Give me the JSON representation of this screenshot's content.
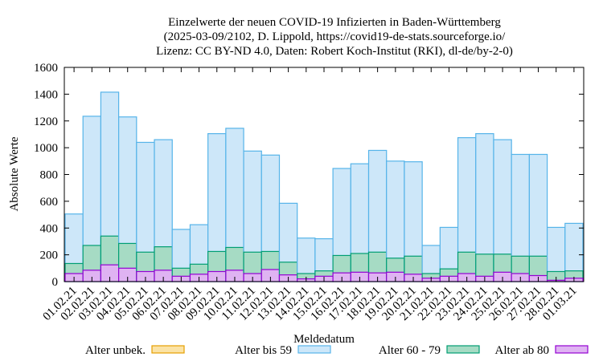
{
  "chart_data": {
    "type": "bar",
    "stacked": true,
    "title_lines": [
      "Einzelwerte der neuen COVID-19 Infizierten in Baden-Württemberg",
      "(2025-03-09/2102, D. Lippold, https://covid19-de-stats.sourceforge.io/",
      "Lizenz: CC BY-ND 4.0, Daten: Robert Koch-Institut (RKI), dl-de/by-2-0)"
    ],
    "xlabel": "Meldedatum",
    "ylabel": "Absolute Werte",
    "ylim": [
      0,
      1600
    ],
    "yticks": [
      0,
      200,
      400,
      600,
      800,
      1000,
      1200,
      1400,
      1600
    ],
    "categories": [
      "01.02.21",
      "02.02.21",
      "03.02.21",
      "04.02.21",
      "05.02.21",
      "06.02.21",
      "07.02.21",
      "08.02.21",
      "09.02.21",
      "10.02.21",
      "11.02.21",
      "12.02.21",
      "13.02.21",
      "14.02.21",
      "15.02.21",
      "16.02.21",
      "17.02.21",
      "18.02.21",
      "19.02.21",
      "20.02.21",
      "21.02.21",
      "22.02.21",
      "23.02.21",
      "24.02.21",
      "25.02.21",
      "26.02.21",
      "27.02.21",
      "28.02.21",
      "01.03.21"
    ],
    "series": [
      {
        "name": "Alter ab 80",
        "fill": "#dfb3f2",
        "stroke": "#9400d3",
        "values": [
          60,
          85,
          125,
          100,
          75,
          85,
          40,
          55,
          75,
          85,
          60,
          90,
          50,
          20,
          40,
          65,
          70,
          65,
          70,
          55,
          25,
          40,
          60,
          40,
          70,
          60,
          45,
          10,
          25
        ]
      },
      {
        "name": "Alter 60 - 79",
        "fill": "#a6dbc4",
        "stroke": "#009e73",
        "values": [
          75,
          185,
          215,
          185,
          145,
          175,
          60,
          75,
          150,
          170,
          160,
          135,
          95,
          40,
          40,
          130,
          140,
          155,
          105,
          135,
          35,
          55,
          160,
          165,
          135,
          130,
          145,
          65,
          55
        ]
      },
      {
        "name": "Alter bis 59",
        "fill": "#cde7f9",
        "stroke": "#56b4e9",
        "values": [
          370,
          965,
          1075,
          945,
          820,
          800,
          290,
          295,
          880,
          890,
          755,
          720,
          440,
          265,
          240,
          650,
          670,
          760,
          725,
          705,
          210,
          310,
          855,
          900,
          855,
          760,
          760,
          330,
          355
        ]
      },
      {
        "name": "Alter unbek.",
        "fill": "#fbe3a5",
        "stroke": "#e69f00",
        "values": [
          0,
          0,
          0,
          0,
          0,
          0,
          0,
          0,
          0,
          0,
          0,
          0,
          0,
          0,
          0,
          0,
          0,
          0,
          0,
          0,
          0,
          0,
          0,
          0,
          0,
          0,
          0,
          0,
          0
        ]
      }
    ],
    "legend_order": [
      "Alter unbek.",
      "Alter bis 59",
      "Alter 60 - 79",
      "Alter ab 80"
    ],
    "legend_position": "bottom",
    "grid": false
  }
}
